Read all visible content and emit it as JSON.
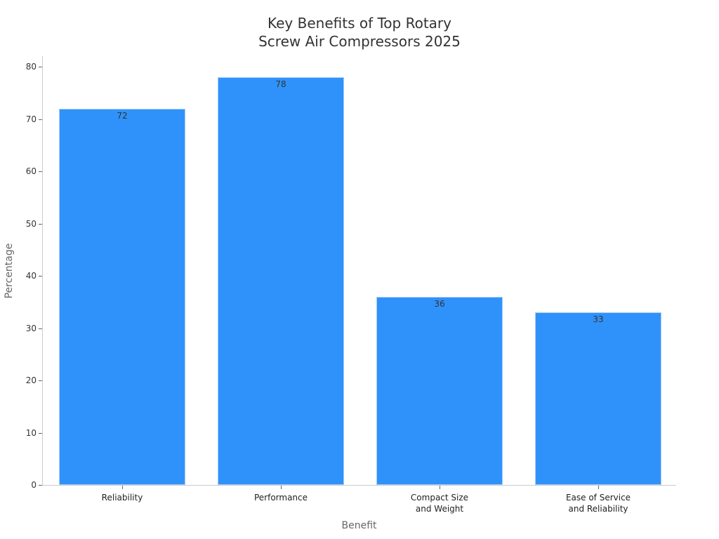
{
  "chart_data": {
    "type": "bar",
    "title": "Key Benefits of Top Rotary Screw Air Compressors 2025",
    "title_lines": [
      "Key Benefits of Top Rotary",
      "Screw Air Compressors 2025"
    ],
    "xlabel": "Benefit",
    "ylabel": "Percentage",
    "categories": [
      "Reliability",
      "Performance",
      "Compact Size and Weight",
      "Ease of Service and Reliability"
    ],
    "category_lines": [
      [
        "Reliability"
      ],
      [
        "Performance"
      ],
      [
        "Compact Size",
        "and Weight"
      ],
      [
        "Ease of Service",
        "and Reliability"
      ]
    ],
    "values": [
      72,
      78,
      36,
      33
    ],
    "data_labels": [
      "72",
      "78",
      "36",
      "33"
    ],
    "ylim": [
      0,
      80
    ],
    "yticks": [
      0,
      10,
      20,
      30,
      40,
      50,
      60,
      70,
      80
    ],
    "grid": false,
    "legend": null,
    "bar_color": "#2f92fa"
  }
}
